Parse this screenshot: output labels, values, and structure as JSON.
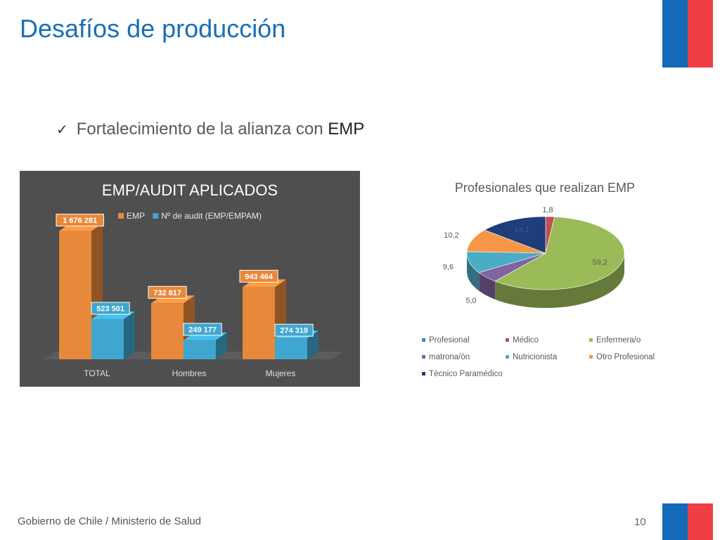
{
  "slide": {
    "title": "Desafíos de producción",
    "bullet_prefix": "Fortalecimiento de la alianza con",
    "bullet_emphasis": "EMP",
    "footer_text": "Gobierno de Chile / Ministerio de Salud",
    "page_number": "10"
  },
  "colors": {
    "flag_blue": "#1469b8",
    "flag_red": "#ef3f46",
    "title_blue": "#1a6fb5"
  },
  "chart_data": [
    {
      "type": "bar",
      "title": "EMP/AUDIT APLICADOS",
      "categories": [
        "TOTAL",
        "Hombres",
        "Mujeres"
      ],
      "series": [
        {
          "name": "EMP",
          "values": [
            1676281,
            732817,
            943464
          ],
          "labels": [
            "1 676 281",
            "732 817",
            "943 464"
          ],
          "color": "#e8883a"
        },
        {
          "name": "Nº de audit (EMP/EMPAM)",
          "values": [
            523501,
            249177,
            274319
          ],
          "labels": [
            "523 501",
            "249 177",
            "274 319"
          ],
          "color": "#3fa6cf"
        }
      ],
      "ylim": [
        0,
        1700000
      ],
      "legend_position": "top",
      "grid": false,
      "style": "3d"
    },
    {
      "type": "pie",
      "title": "Profesionales que realizan EMP",
      "slices": [
        {
          "label": "Médico",
          "value": 1.8,
          "label_text": "1,8",
          "color": "#c0504d"
        },
        {
          "label": "Enfermera/o",
          "value": 59.2,
          "label_text": "59,2",
          "color": "#9bbb59"
        },
        {
          "label": "matrona/ón",
          "value": 5.0,
          "label_text": "5,0",
          "color": "#8064a2"
        },
        {
          "label": "Nutricionista",
          "value": 9.6,
          "label_text": "9,6",
          "color": "#4bacc6"
        },
        {
          "label": "Otro Profesional",
          "value": 10.2,
          "label_text": "10,2",
          "color": "#f79646"
        },
        {
          "label": "Técnico Paramédico",
          "value": 14.1,
          "label_text": "14,1",
          "color": "#1f3d7a"
        }
      ],
      "legend": [
        {
          "label": "Profesional",
          "color": "#4f81bd"
        },
        {
          "label": "Médico",
          "color": "#c0504d"
        },
        {
          "label": "Enfermera/o",
          "color": "#9bbb59"
        },
        {
          "label": "matrona/ón",
          "color": "#8064a2"
        },
        {
          "label": "Nutricionista",
          "color": "#4bacc6"
        },
        {
          "label": "Otro Profesional",
          "color": "#f79646"
        },
        {
          "label": "Técnico Paramédico",
          "color": "#1f3d7a"
        }
      ],
      "legend_position": "bottom",
      "style": "3d"
    }
  ]
}
